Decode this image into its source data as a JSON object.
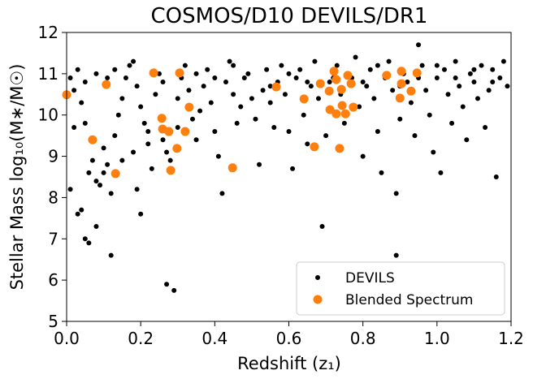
{
  "chart_data": {
    "type": "scatter",
    "title": "COSMOS/D10 DEVILS/DR1",
    "xlabel": "Redshift (z₁)",
    "ylabel": "Stellar Mass log₁₀(M∗/M☉)",
    "xlim": [
      0,
      1.2
    ],
    "ylim": [
      5,
      12
    ],
    "xticks": [
      {
        "value": 0,
        "label": "0.0"
      },
      0.2,
      0.4,
      0.6,
      0.8,
      {
        "value": 1,
        "label": "1.0"
      },
      1.2
    ],
    "yticks": [
      5,
      6,
      7,
      8,
      9,
      10,
      11,
      12
    ],
    "grid": false,
    "legend": "lower right",
    "series": [
      {
        "name": "DEVILS",
        "color": "#000000",
        "x": [
          0.01,
          0.02,
          0.03,
          0.04,
          0.05,
          0.02,
          0.01,
          0.03,
          0.05,
          0.06,
          0.04,
          0.08,
          0.06,
          0.07,
          0.08,
          0.09,
          0.1,
          0.11,
          0.12,
          0.12,
          0.1,
          0.13,
          0.14,
          0.15,
          0.16,
          0.17,
          0.18,
          0.19,
          0.2,
          0.21,
          0.22,
          0.23,
          0.2,
          0.19,
          0.27,
          0.29,
          0.24,
          0.25,
          0.26,
          0.27,
          0.28,
          0.3,
          0.31,
          0.32,
          0.33,
          0.34,
          0.35,
          0.36,
          0.37,
          0.38,
          0.39,
          0.4,
          0.41,
          0.42,
          0.43,
          0.44,
          0.45,
          0.46,
          0.47,
          0.48,
          0.49,
          0.5,
          0.51,
          0.52,
          0.53,
          0.54,
          0.55,
          0.56,
          0.57,
          0.58,
          0.59,
          0.6,
          0.61,
          0.62,
          0.63,
          0.64,
          0.65,
          0.66,
          0.67,
          0.68,
          0.69,
          0.7,
          0.71,
          0.73,
          0.74,
          0.75,
          0.77,
          0.78,
          0.79,
          0.8,
          0.81,
          0.82,
          0.83,
          0.84,
          0.85,
          0.86,
          0.87,
          0.88,
          0.89,
          0.89,
          0.9,
          0.91,
          0.92,
          0.93,
          0.94,
          0.95,
          0.96,
          0.97,
          0.98,
          0.99,
          1.0,
          1.01,
          1.02,
          1.03,
          1.04,
          1.05,
          1.06,
          1.07,
          1.08,
          1.09,
          1.1,
          1.11,
          1.12,
          1.13,
          1.14,
          1.15,
          1.16,
          1.17,
          1.18,
          1.19,
          0.15,
          0.18,
          0.22,
          0.26,
          0.3,
          0.05,
          0.08,
          0.11,
          0.13,
          0.35,
          0.4,
          0.45,
          0.55,
          0.6,
          0.65,
          0.72,
          0.76,
          0.8,
          0.84,
          0.9,
          0.95,
          1.0,
          1.05,
          1.1,
          1.15
        ],
        "values": [
          10.9,
          10.6,
          11.1,
          10.3,
          9.8,
          9.7,
          8.2,
          7.6,
          7.0,
          6.9,
          7.7,
          7.3,
          8.6,
          8.9,
          8.4,
          8.3,
          8.6,
          8.8,
          8.1,
          6.6,
          9.2,
          9.5,
          10.0,
          10.4,
          10.9,
          11.2,
          11.3,
          10.7,
          10.2,
          9.8,
          9.3,
          8.7,
          7.6,
          8.2,
          5.9,
          5.75,
          10.5,
          11.0,
          10.8,
          9.1,
          8.9,
          10.4,
          10.9,
          11.2,
          10.6,
          9.9,
          9.4,
          10.1,
          10.7,
          11.1,
          10.3,
          9.6,
          9.0,
          8.1,
          10.8,
          11.3,
          10.5,
          9.8,
          10.2,
          10.9,
          11.0,
          10.4,
          9.9,
          8.8,
          10.6,
          11.1,
          10.3,
          9.7,
          10.8,
          11.2,
          10.5,
          9.6,
          8.7,
          10.9,
          11.1,
          10.0,
          9.3,
          10.7,
          11.3,
          10.4,
          7.3,
          9.5,
          10.8,
          11.2,
          10.5,
          9.8,
          10.9,
          11.4,
          10.2,
          9.0,
          10.7,
          11.1,
          10.4,
          9.6,
          8.6,
          10.9,
          11.3,
          10.6,
          6.6,
          8.1,
          9.9,
          11.0,
          10.8,
          10.3,
          9.5,
          11.7,
          11.2,
          10.6,
          10.0,
          9.1,
          10.9,
          8.6,
          11.1,
          10.5,
          9.8,
          11.3,
          10.7,
          10.2,
          9.4,
          11.0,
          10.8,
          10.4,
          11.2,
          9.7,
          10.6,
          11.1,
          8.5,
          10.9,
          11.3,
          10.7,
          8.9,
          9.1,
          9.6,
          9.4,
          9.7,
          10.8,
          11.0,
          10.9,
          11.1,
          11.0,
          10.9,
          11.2,
          10.7,
          11.0,
          10.8,
          10.9,
          11.0,
          10.8,
          11.2,
          10.7,
          10.9,
          11.2,
          10.9,
          11.1,
          10.8
        ]
      },
      {
        "name": "Blended Spectrum",
        "color": "#ff7f0e",
        "x": [
          0.0,
          0.07,
          0.107,
          0.132,
          0.235,
          0.257,
          0.259,
          0.276,
          0.281,
          0.298,
          0.305,
          0.32,
          0.331,
          0.448,
          0.566,
          0.641,
          0.669,
          0.685,
          0.709,
          0.711,
          0.722,
          0.728,
          0.728,
          0.737,
          0.742,
          0.744,
          0.753,
          0.759,
          0.768,
          0.774,
          0.864,
          0.9,
          0.904,
          0.904,
          0.93,
          0.946
        ],
        "values": [
          10.49,
          9.4,
          10.74,
          8.58,
          11.02,
          9.92,
          9.66,
          9.6,
          8.66,
          9.19,
          11.02,
          9.6,
          10.19,
          8.72,
          10.68,
          10.39,
          9.23,
          10.76,
          10.58,
          10.13,
          11.06,
          10.86,
          10.03,
          9.19,
          10.62,
          10.23,
          10.03,
          10.96,
          10.76,
          10.19,
          10.96,
          10.41,
          11.06,
          10.76,
          10.58,
          11.02
        ]
      }
    ]
  }
}
